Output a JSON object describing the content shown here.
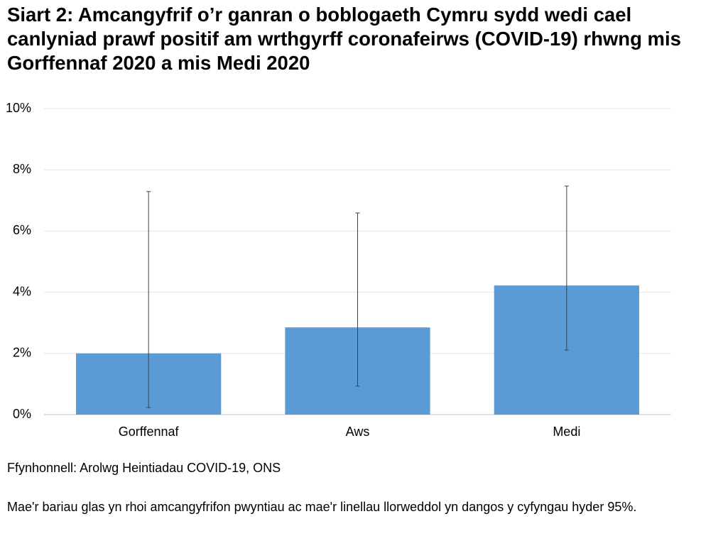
{
  "chart_data": {
    "type": "bar",
    "title": "Siart 2: Amcangyfrif o’r ganran o boblogaeth Cymru sydd wedi cael canlyniad prawf positif am wrthgyrff coronafeirws (COVID-19) rhwng mis Gorffennaf 2020 a mis Medi 2020",
    "categories": [
      "Gorffennaf",
      "Aws",
      "Medi"
    ],
    "values": [
      2.0,
      2.85,
      4.22
    ],
    "ci_lower": [
      0.23,
      0.93,
      2.11
    ],
    "ci_upper": [
      7.29,
      6.59,
      7.47
    ],
    "color": "#5b9bd5",
    "ylim": [
      0,
      10
    ],
    "yticks": [
      {
        "value": 0,
        "label": "0%"
      },
      {
        "value": 2,
        "label": "2%"
      },
      {
        "value": 4,
        "label": "4%"
      },
      {
        "value": 6,
        "label": "6%"
      },
      {
        "value": 8,
        "label": "8%"
      },
      {
        "value": 10,
        "label": "10%"
      }
    ],
    "grid": true,
    "source": "Ffynhonnell: Arolwg Heintiadau COVID-19, ONS",
    "note": "Mae'r bariau glas yn rhoi amcangyfrifon pwyntiau ac mae'r linellau llorweddol yn dangos y cyfyngau hyder 95%."
  }
}
